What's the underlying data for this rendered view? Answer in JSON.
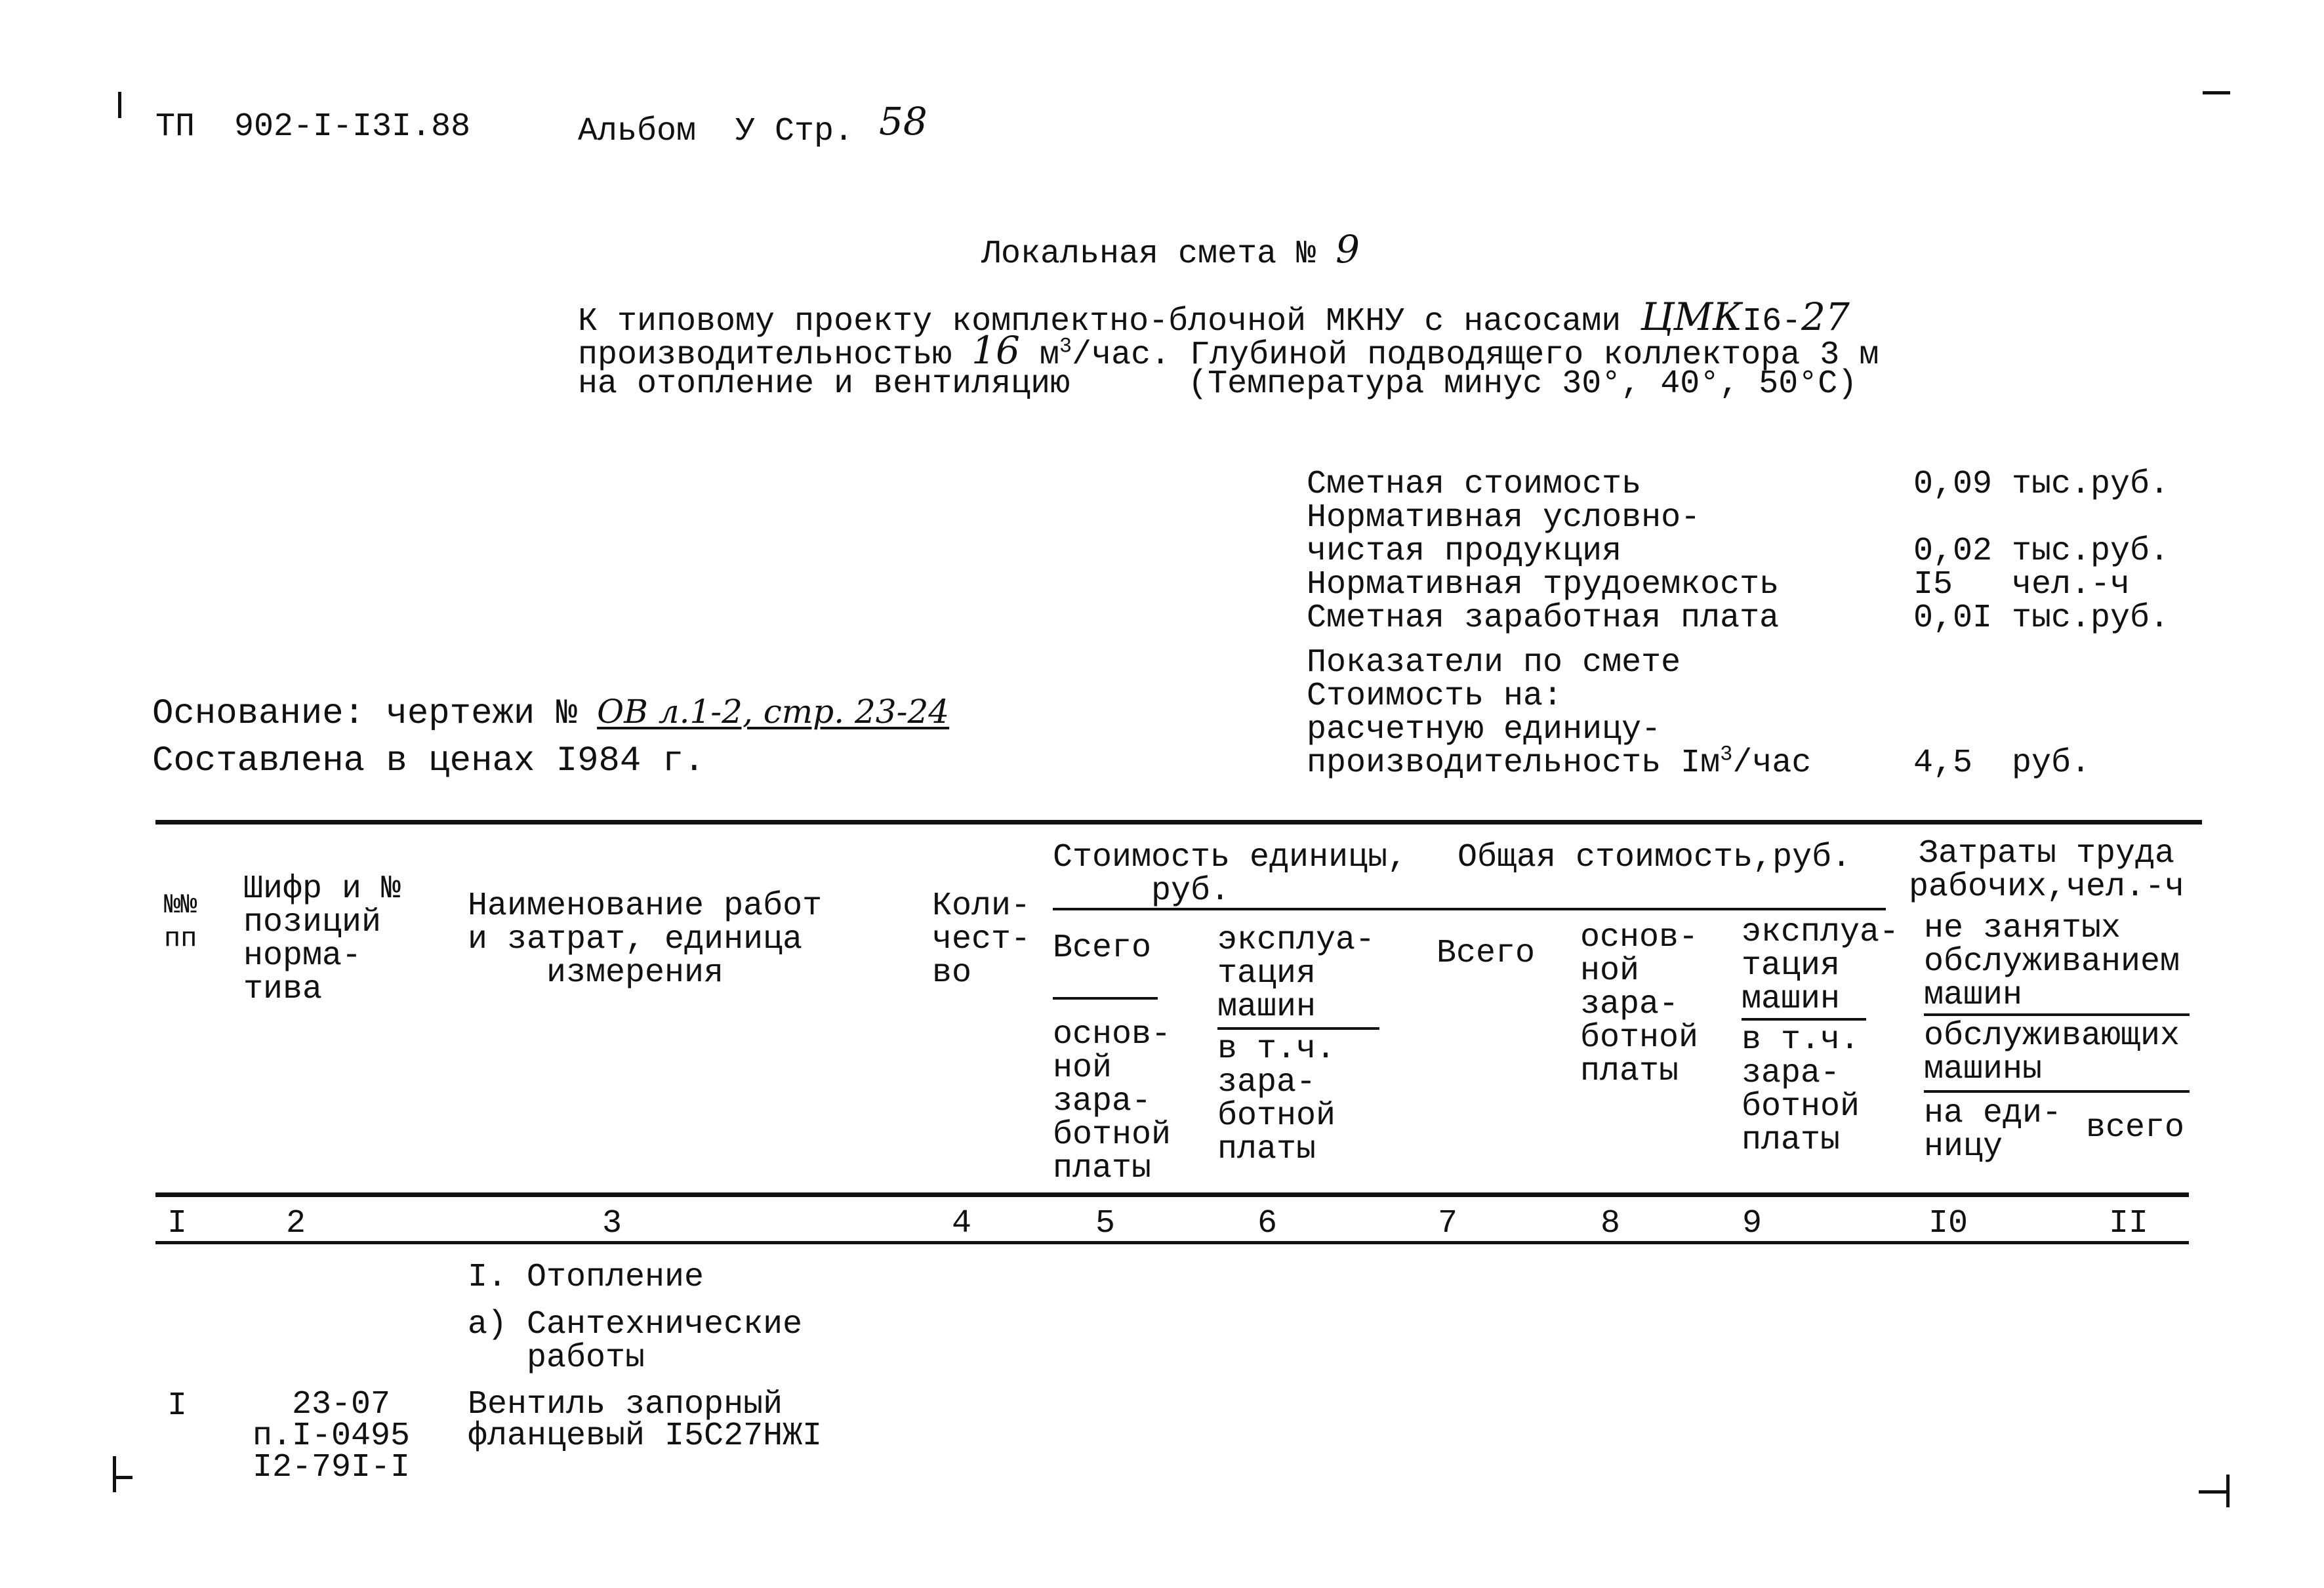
{
  "header": {
    "doc_code": "ТП  902-I-I3I.88",
    "album": "Альбом  У Стр.",
    "page_handwritten": "58"
  },
  "title": {
    "label": "Локальная смета №",
    "number_handwritten": "9"
  },
  "subtitle": {
    "line1_a": "К типовому проекту комплектно-блочной МКНУ с насосами",
    "line1_hw1": "ЦМК",
    "line1_b": "I6-",
    "line1_hw2": "27",
    "line2_a": "производительностью",
    "line2_hw": "16",
    "line2_b": "м",
    "line2_sup": "3",
    "line2_c": "/час. Глубиной подводящего коллектора 3 м",
    "line3": "на отопление и вентиляцию      (Температура минус 30°, 40°, 50°С)"
  },
  "summary": {
    "items": [
      {
        "label": "Сметная стоимость",
        "value": "0,09 тыс.руб."
      },
      {
        "label": "Нормативная условно-",
        "value": ""
      },
      {
        "label": "чистая продукция",
        "value": "0,02 тыс.руб."
      },
      {
        "label": "Нормативная трудоемкость",
        "value": "I5   чел.-ч"
      },
      {
        "label": "Сметная заработная плата",
        "value": "0,0I тыс.руб."
      }
    ],
    "indicators_title": "Показатели по смете",
    "cost_on": "Стоимость на:",
    "unit_line1": "расчетную единицу-",
    "unit_line2": "производительность Iм",
    "unit_sup": "3",
    "unit_suffix": "/час",
    "unit_value": "4,5  руб."
  },
  "basis": {
    "label": "Основание: чертежи №",
    "handwritten": "ОВ л.1-2, стр. 23-24",
    "prices": "Составлена в ценах I984 г."
  },
  "table": {
    "headers": {
      "num": "№№\nпп",
      "code": "Шифр и №\nпозиций\nнорма-\nтива",
      "name": "Наименование работ\nи затрат, единица\n    измерения",
      "qty": "Коли-\nчест-\nво",
      "unit_cost": "Стоимость единицы,\n     руб.",
      "unit_total": "Всего",
      "unit_base": "основ-\nной\nзара-\nботной\nплаты",
      "unit_exp": "эксплуа-\nтация\nмашин",
      "unit_exp_wage": "в т.ч.\nзара-\nботной\nплаты",
      "total_cost": "Общая стоимость,руб.",
      "total_all": "Всего",
      "total_base": "основ-\nной\nзара-\nботной\nплаты",
      "total_exp": "эксплуа-\nтация\nмашин",
      "total_exp_wage": "в т.ч.\nзара-\nботной\nплаты",
      "labor": "Затраты труда\nрабочих,чел.-ч",
      "labor_not": "не занятых\nобслуживанием\nмашин",
      "labor_serv": "обслуживающих\nмашины",
      "labor_unit": "на еди-\nницу",
      "labor_total": "всего"
    },
    "column_numbers": [
      "I",
      "2",
      "3",
      "4",
      "5",
      "6",
      "7",
      "8",
      "9",
      "I0",
      "II"
    ],
    "sections": [
      {
        "title": "I. Отопление"
      },
      {
        "title": "а) Сантехнические\n   работы"
      }
    ],
    "rows": [
      {
        "num": "I",
        "code": "  23-07\nп.I-0495\nI2-79I-I",
        "name": "Вентиль запорный\nфланцевый I5С27НЖI"
      }
    ]
  }
}
